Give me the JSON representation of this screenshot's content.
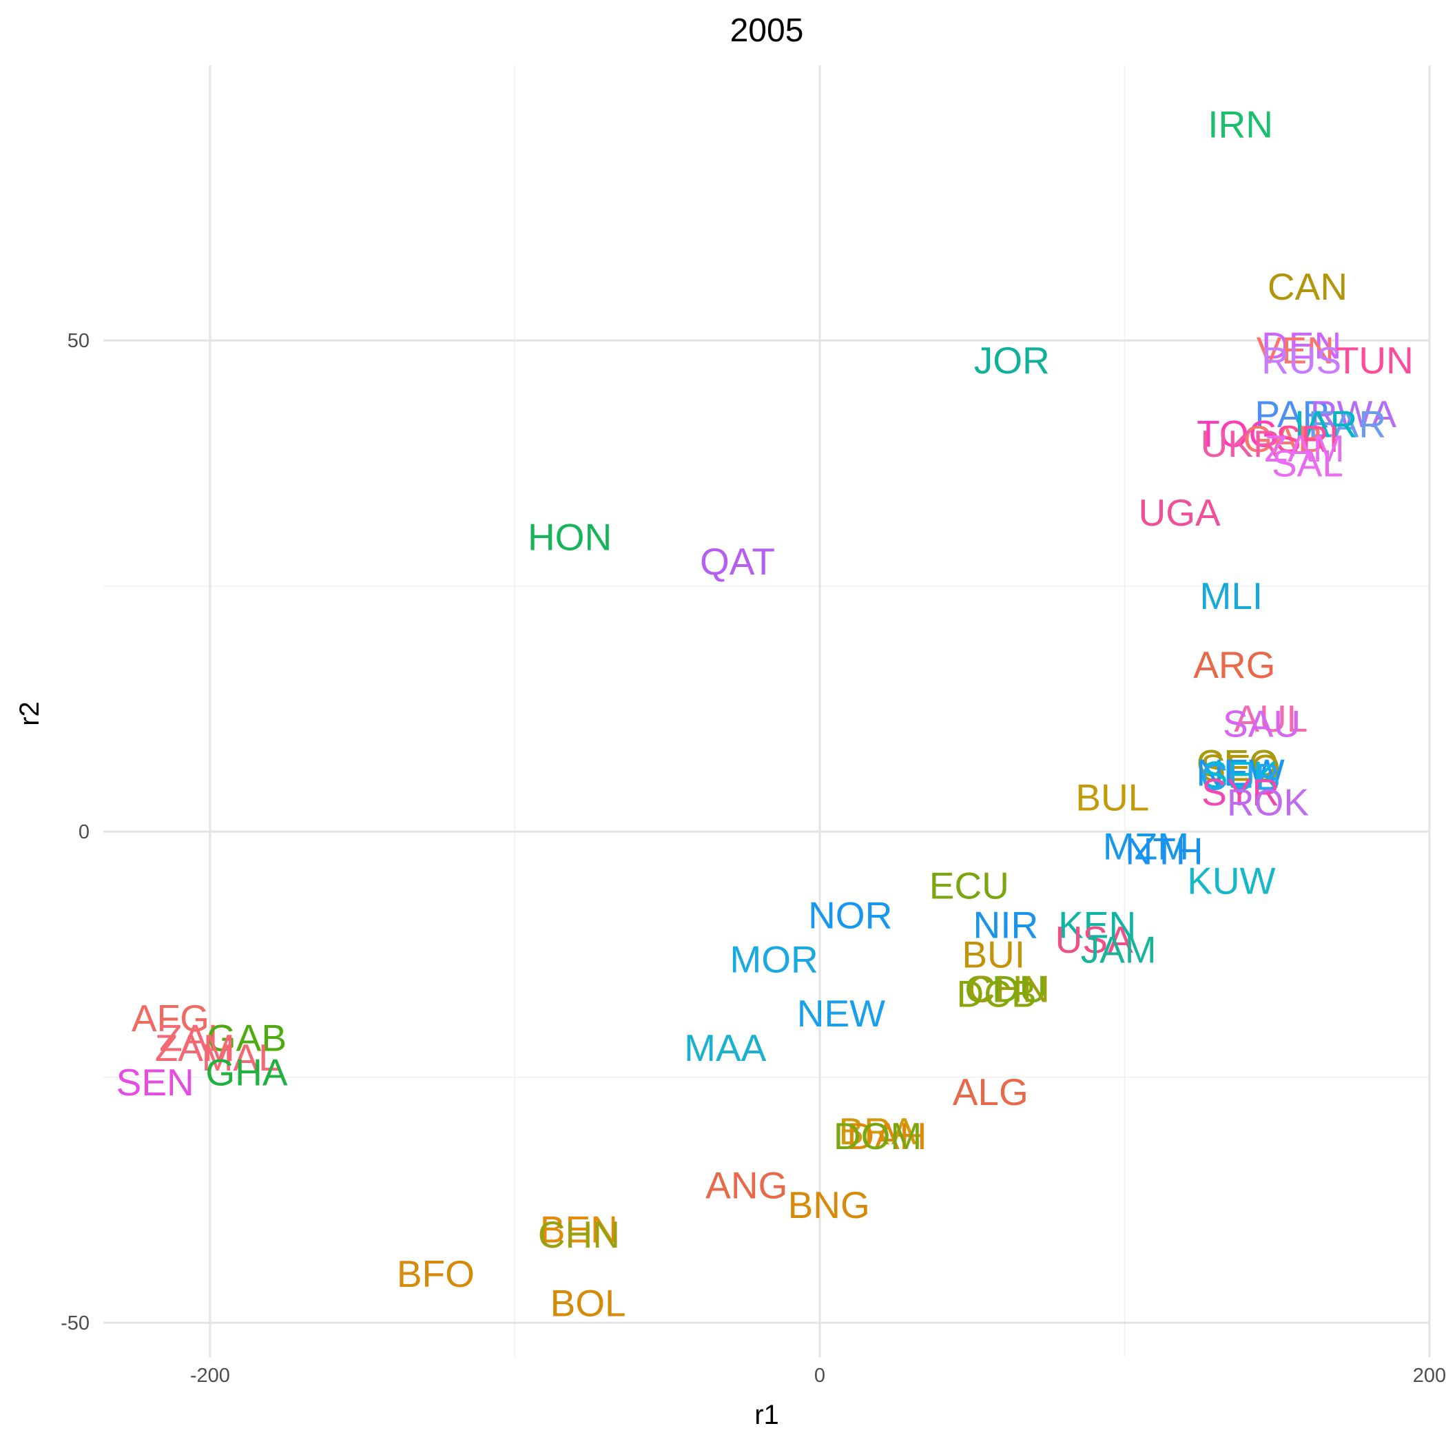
{
  "chart_data": {
    "type": "scatter",
    "title": "2005",
    "xlabel": "r1",
    "ylabel": "r2",
    "xlim": [
      -235,
      200
    ],
    "ylim": [
      -53.5,
      78
    ],
    "x_ticks": [
      -200,
      0,
      200
    ],
    "x_tick_labels": [
      "-200",
      "0",
      "200"
    ],
    "y_ticks": [
      -50,
      0,
      50
    ],
    "y_tick_labels": [
      "-50",
      "0",
      "50"
    ],
    "x_minor": [
      -100,
      100
    ],
    "y_minor": [
      -25,
      25
    ],
    "grid": true,
    "legend": "none",
    "marker": "text",
    "points": [
      {
        "label": "IRN",
        "x": 138,
        "y": 72,
        "color": "#1ABF6E"
      },
      {
        "label": "CAN",
        "x": 160,
        "y": 55.5,
        "color": "#B1960C"
      },
      {
        "label": "DEN",
        "x": 158,
        "y": 49.5,
        "color": "#CC66FF"
      },
      {
        "label": "VEN",
        "x": 156,
        "y": 49,
        "color": "#F8766D"
      },
      {
        "label": "RUS",
        "x": 158,
        "y": 48,
        "color": "#C77CFF"
      },
      {
        "label": "TUN",
        "x": 182,
        "y": 48,
        "color": "#FF4B9B"
      },
      {
        "label": "JOR",
        "x": 63,
        "y": 48,
        "color": "#11B09A"
      },
      {
        "label": "PAR",
        "x": 155,
        "y": 42.5,
        "color": "#4C8FF5"
      },
      {
        "label": "RWA",
        "x": 175,
        "y": 42.5,
        "color": "#B56DF7"
      },
      {
        "label": "EAR",
        "x": 173,
        "y": 41.5,
        "color": "#6C9BF0"
      },
      {
        "label": "IAR",
        "x": 166,
        "y": 41.5,
        "color": "#00B8C4"
      },
      {
        "label": "TOG",
        "x": 137,
        "y": 40.5,
        "color": "#FF3CB8"
      },
      {
        "label": "GAB",
        "x": 152,
        "y": 40,
        "color": "#F8766D"
      },
      {
        "label": "SRI",
        "x": 160,
        "y": 40,
        "color": "#FF4B9B"
      },
      {
        "label": "UKR",
        "x": 138,
        "y": 39.5,
        "color": "#F25AA8"
      },
      {
        "label": "ZAM",
        "x": 159,
        "y": 39,
        "color": "#E86BF0"
      },
      {
        "label": "SAL",
        "x": 160,
        "y": 37.5,
        "color": "#E86BF0"
      },
      {
        "label": "UGA",
        "x": 118,
        "y": 32.5,
        "color": "#F04F9A"
      },
      {
        "label": "HON",
        "x": -82,
        "y": 30,
        "color": "#18B35A"
      },
      {
        "label": "QAT",
        "x": -27,
        "y": 27.5,
        "color": "#B55EF0"
      },
      {
        "label": "MLI",
        "x": 135,
        "y": 24,
        "color": "#18A9D8"
      },
      {
        "label": "ARG",
        "x": 136,
        "y": 17,
        "color": "#E8684A"
      },
      {
        "label": "AUL",
        "x": 148,
        "y": 11.5,
        "color": "#F06BB0"
      },
      {
        "label": "SAU",
        "x": 145,
        "y": 11,
        "color": "#D665F2"
      },
      {
        "label": "CEO",
        "x": 137,
        "y": 7,
        "color": "#A79A0E"
      },
      {
        "label": "SEO",
        "x": 138,
        "y": 6.5,
        "color": "#B1960C"
      },
      {
        "label": "NEW",
        "x": 138,
        "y": 6,
        "color": "#1895F5"
      },
      {
        "label": "SEK",
        "x": 138,
        "y": 5.8,
        "color": "#00BBD6"
      },
      {
        "label": "CUB",
        "x": 138,
        "y": 5.6,
        "color": "#22A5EA"
      },
      {
        "label": "SYR",
        "x": 138,
        "y": 4,
        "color": "#F048B0"
      },
      {
        "label": "ROK",
        "x": 147,
        "y": 3,
        "color": "#C06AF0"
      },
      {
        "label": "BUL",
        "x": 96,
        "y": 3.5,
        "color": "#C39A0A"
      },
      {
        "label": "MZM",
        "x": 107,
        "y": -1.5,
        "color": "#1897E8"
      },
      {
        "label": "NTH",
        "x": 113,
        "y": -2,
        "color": "#1A90F0"
      },
      {
        "label": "KUW",
        "x": 135,
        "y": -5,
        "color": "#16B8C8"
      },
      {
        "label": "ECU",
        "x": 49,
        "y": -5.5,
        "color": "#7AA60F"
      },
      {
        "label": "NOR",
        "x": 10,
        "y": -8.5,
        "color": "#1897F0"
      },
      {
        "label": "NIR",
        "x": 61,
        "y": -9.5,
        "color": "#1A93EA"
      },
      {
        "label": "KEN",
        "x": 91,
        "y": -9.5,
        "color": "#0FB5A3"
      },
      {
        "label": "USA",
        "x": 90,
        "y": -11,
        "color": "#F04F86"
      },
      {
        "label": "JAM",
        "x": 98,
        "y": -12,
        "color": "#1AB39A"
      },
      {
        "label": "BUI",
        "x": 57,
        "y": -12.5,
        "color": "#C3940A"
      },
      {
        "label": "MOR",
        "x": -15,
        "y": -13,
        "color": "#1AA8E0"
      },
      {
        "label": "CDU",
        "x": 61,
        "y": -16,
        "color": "#7AAA10"
      },
      {
        "label": "CHN",
        "x": 62,
        "y": -16,
        "color": "#9AA10E"
      },
      {
        "label": "DCB",
        "x": 58,
        "y": -16.5,
        "color": "#86A80A"
      },
      {
        "label": "NEW",
        "x": 7,
        "y": -18.5,
        "color": "#1AA0EA"
      },
      {
        "label": "AFG",
        "x": -213,
        "y": -19,
        "color": "#F06A62"
      },
      {
        "label": "ZAI",
        "x": -207,
        "y": -21,
        "color": "#F46873"
      },
      {
        "label": "GAB",
        "x": -188,
        "y": -21,
        "color": "#4DAA10"
      },
      {
        "label": "ZAM",
        "x": -205,
        "y": -22,
        "color": "#F46873"
      },
      {
        "label": "MAL",
        "x": -190,
        "y": -23,
        "color": "#F46873"
      },
      {
        "label": "GHA",
        "x": -188,
        "y": -24.5,
        "color": "#22B040"
      },
      {
        "label": "SEN",
        "x": -218,
        "y": -25.5,
        "color": "#E44DE0"
      },
      {
        "label": "MAA",
        "x": -31,
        "y": -22,
        "color": "#1AB0D0"
      },
      {
        "label": "ALG",
        "x": 56,
        "y": -26.5,
        "color": "#E8684A"
      },
      {
        "label": "BRA",
        "x": 19,
        "y": -30.5,
        "color": "#D29A0A"
      },
      {
        "label": "DAH",
        "x": 22,
        "y": -31,
        "color": "#E0880A"
      },
      {
        "label": "DOM",
        "x": 19,
        "y": -31,
        "color": "#7AA60F"
      },
      {
        "label": "ANG",
        "x": -24,
        "y": -36,
        "color": "#E8684A"
      },
      {
        "label": "BNG",
        "x": 3,
        "y": -38,
        "color": "#D68A0A"
      },
      {
        "label": "BEN",
        "x": -79,
        "y": -40.5,
        "color": "#E28A0A"
      },
      {
        "label": "CHN",
        "x": -79,
        "y": -41,
        "color": "#9AA10E"
      },
      {
        "label": "BFO",
        "x": -126,
        "y": -45,
        "color": "#D68A0A"
      },
      {
        "label": "BOL",
        "x": -76,
        "y": -48,
        "color": "#D68A0A"
      }
    ]
  }
}
